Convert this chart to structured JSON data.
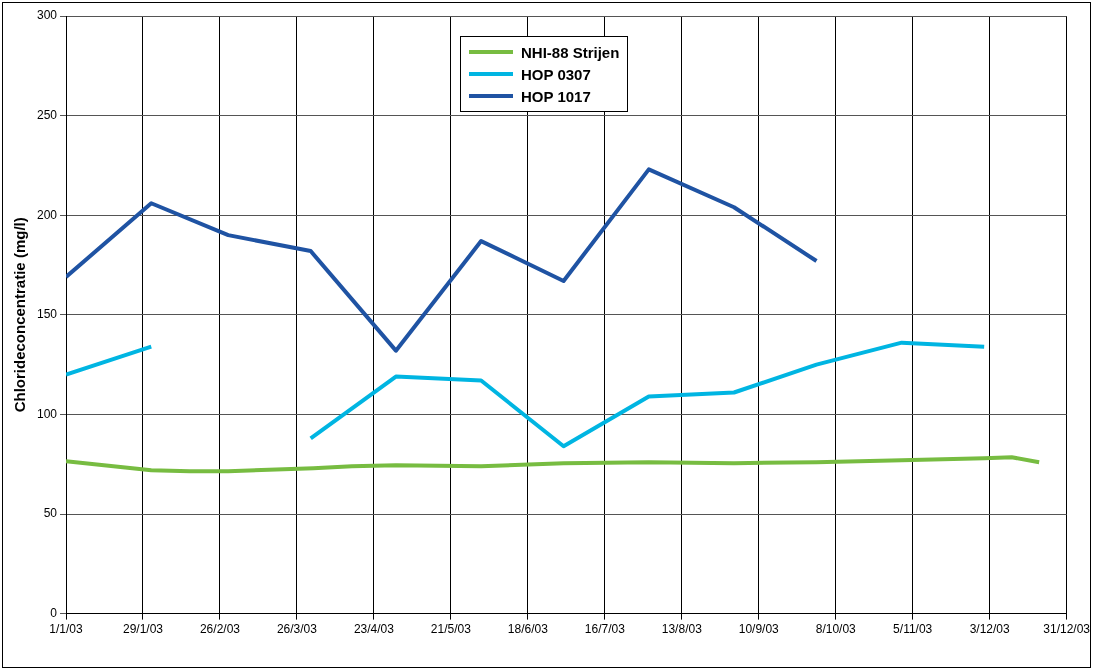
{
  "chart_data": {
    "type": "line",
    "ylabel": "Chlorideconcentratie (mg/l)",
    "xlim": [
      "2003-01-01",
      "2003-12-31"
    ],
    "xticks": [
      {
        "value": "2003-01-01",
        "label": "1/1/03"
      },
      {
        "value": "2003-01-29",
        "label": "29/1/03"
      },
      {
        "value": "2003-02-26",
        "label": "26/2/03"
      },
      {
        "value": "2003-03-26",
        "label": "26/3/03"
      },
      {
        "value": "2003-04-23",
        "label": "23/4/03"
      },
      {
        "value": "2003-05-21",
        "label": "21/5/03"
      },
      {
        "value": "2003-06-18",
        "label": "18/6/03"
      },
      {
        "value": "2003-07-16",
        "label": "16/7/03"
      },
      {
        "value": "2003-08-13",
        "label": "13/8/03"
      },
      {
        "value": "2003-09-10",
        "label": "10/9/03"
      },
      {
        "value": "2003-10-08",
        "label": "8/10/03"
      },
      {
        "value": "2003-11-05",
        "label": "5/11/03"
      },
      {
        "value": "2003-12-03",
        "label": "3/12/03"
      },
      {
        "value": "2003-12-31",
        "label": "31/12/03"
      }
    ],
    "ylim": [
      0,
      300
    ],
    "yticks": [
      0,
      50,
      100,
      150,
      200,
      250,
      300
    ],
    "grid": true,
    "legend": "top",
    "marker": "none",
    "line_style": "solid",
    "series": [
      {
        "name": "NHI-88 Strijen",
        "color": "#77bc41",
        "x": [
          "2003-01-01",
          "2003-02-01",
          "2003-02-15",
          "2003-03-01",
          "2003-04-01",
          "2003-04-15",
          "2003-05-01",
          "2003-06-01",
          "2003-07-01",
          "2003-08-01",
          "2003-09-01",
          "2003-10-01",
          "2003-11-01",
          "2003-12-01",
          "2003-12-11",
          "2003-12-21"
        ],
        "values": [
          76.5,
          72,
          71.5,
          71.5,
          73,
          74,
          74.5,
          74,
          75.5,
          76,
          75.5,
          76,
          77,
          78,
          78.5,
          76
        ]
      },
      {
        "name": "HOP 0307",
        "color": "#00b5e2",
        "x": [
          "2003-01-01",
          "2003-02-01",
          "2003-03-01",
          "2003-03-31",
          "2003-05-01",
          "2003-06-01",
          "2003-07-01",
          "2003-08-01",
          "2003-09-01",
          "2003-10-01",
          "2003-11-01",
          "2003-12-01"
        ],
        "values": [
          120,
          134,
          null,
          88,
          119,
          117,
          84,
          109,
          111,
          125,
          136,
          134
        ]
      },
      {
        "name": "HOP 1017",
        "color": "#1f53a3",
        "x": [
          "2003-01-01",
          "2003-02-01",
          "2003-03-01",
          "2003-03-31",
          "2003-05-01",
          "2003-06-01",
          "2003-07-01",
          "2003-08-01",
          "2003-09-01",
          "2003-10-01"
        ],
        "values": [
          169,
          206,
          190,
          182,
          132,
          187,
          167,
          223,
          204,
          177
        ]
      }
    ]
  }
}
